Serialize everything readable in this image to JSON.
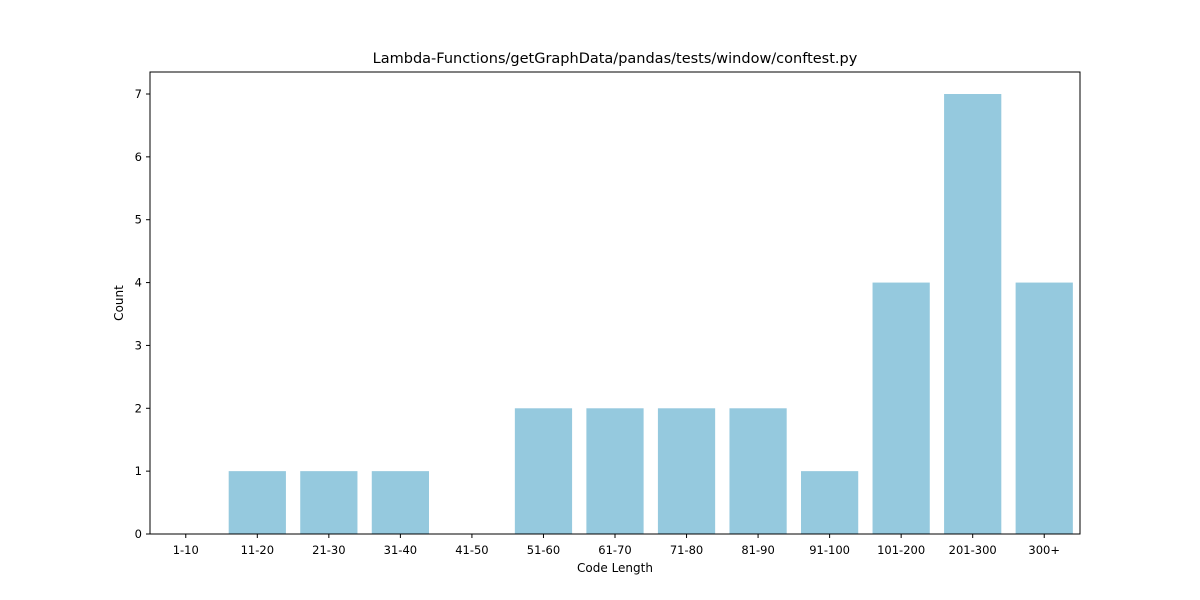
{
  "chart_data": {
    "type": "bar",
    "title": "Lambda-Functions/getGraphData/pandas/tests/window/conftest.py",
    "xlabel": "Code Length",
    "ylabel": "Count",
    "categories": [
      "1-10",
      "11-20",
      "21-30",
      "31-40",
      "41-50",
      "51-60",
      "61-70",
      "71-80",
      "81-90",
      "91-100",
      "101-200",
      "201-300",
      "300+"
    ],
    "values": [
      0,
      1,
      1,
      1,
      0,
      2,
      2,
      2,
      2,
      1,
      4,
      7,
      4
    ],
    "ylim": [
      0,
      7.35
    ],
    "yticks": [
      0,
      1,
      2,
      3,
      4,
      5,
      6,
      7
    ],
    "grid": false,
    "legend": "none",
    "bar_color": "#95c9de",
    "axis_color": "#000000"
  }
}
